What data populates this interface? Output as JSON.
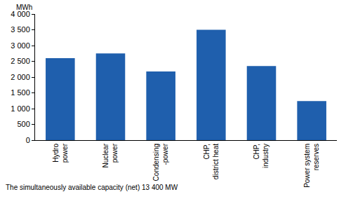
{
  "chart_data": {
    "type": "bar",
    "ylabel": "MWh",
    "annotation": "The simultaneously available capacity (net) 13 400 MW",
    "categories": [
      "Hydro\npower",
      "Nuclear\npower",
      "Condensing\n-power",
      "CHP,\ndistrict heat",
      "CHP,\nindustry",
      "Power system\nreserves"
    ],
    "values": [
      2600,
      2750,
      2180,
      3500,
      2350,
      1240
    ],
    "color": "#1f5fad",
    "ylim": [
      0,
      4000
    ],
    "yticks": [
      0,
      500,
      {
        "value": 1000,
        "label": "1 000"
      },
      {
        "value": 1500,
        "label": "1 500"
      },
      {
        "value": 2000,
        "label": "2 000"
      },
      {
        "value": 2500,
        "label": "2 500"
      },
      {
        "value": 3000,
        "label": "3 000"
      },
      {
        "value": 3500,
        "label": "3 500"
      },
      {
        "value": 4000,
        "label": "4 000"
      }
    ],
    "grid": false
  }
}
